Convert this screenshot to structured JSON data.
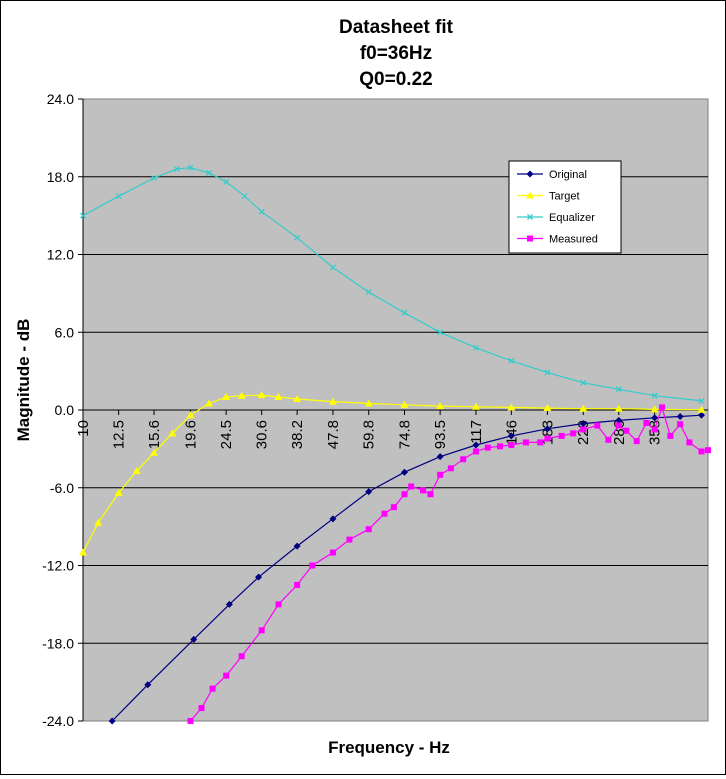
{
  "chart_data": {
    "type": "line",
    "title_lines": [
      "Datasheet fit",
      "f0=36Hz",
      "Q0=0.22"
    ],
    "xlabel": "Frequency - Hz",
    "ylabel": "Magnitude - dB",
    "ylim": [
      -24,
      24
    ],
    "y_ticks": [
      "24.0",
      "18.0",
      "12.0",
      "6.0",
      "0.0",
      "-6.0",
      "-12.0",
      "-18.0",
      "-24.0"
    ],
    "x_scale": "log",
    "x_range": [
      10,
      500
    ],
    "x_ticks": [
      "10",
      "12.5",
      "15.6",
      "19.6",
      "24.5",
      "30.6",
      "38.2",
      "47.8",
      "59.8",
      "74.8",
      "93.5",
      "117",
      "146",
      "183",
      "229",
      "286",
      "358"
    ],
    "grid": "horizontal",
    "legend_position": "upper-right",
    "plot_background": "#c0c0c0",
    "series": [
      {
        "name": "Original",
        "color": "#000080",
        "marker": "diamond",
        "x": [
          12,
          15,
          20,
          25,
          30,
          38.2,
          47.8,
          59.8,
          74.8,
          93.5,
          117,
          146,
          183,
          229,
          286,
          358,
          420,
          480
        ],
        "y": [
          -24,
          -21.2,
          -17.7,
          -15,
          -12.9,
          -10.5,
          -8.4,
          -6.3,
          -4.8,
          -3.6,
          -2.7,
          -2.0,
          -1.45,
          -1.05,
          -0.8,
          -0.6,
          -0.5,
          -0.4
        ]
      },
      {
        "name": "Target",
        "color": "#ffff00",
        "marker": "triangle",
        "x": [
          10,
          11,
          12.5,
          14,
          15.6,
          17.5,
          19.6,
          22,
          24.5,
          27,
          30.6,
          34,
          38.2,
          47.8,
          59.8,
          74.8,
          93.5,
          117,
          146,
          183,
          229,
          286,
          358,
          480
        ],
        "y": [
          -11,
          -8.7,
          -6.4,
          -4.7,
          -3.3,
          -1.8,
          -0.4,
          0.5,
          1.0,
          1.1,
          1.15,
          1.0,
          0.85,
          0.65,
          0.5,
          0.4,
          0.3,
          0.25,
          0.2,
          0.15,
          0.1,
          0.1,
          0.05,
          0.02
        ]
      },
      {
        "name": "Equalizer",
        "color": "#33cccc",
        "marker": "x",
        "x": [
          10,
          12.5,
          15.6,
          18,
          19.6,
          22,
          24.5,
          27.5,
          30.6,
          38.2,
          47.8,
          59.8,
          74.8,
          93.5,
          117,
          146,
          183,
          229,
          286,
          358,
          480
        ],
        "y": [
          15,
          16.5,
          17.9,
          18.6,
          18.7,
          18.3,
          17.6,
          16.5,
          15.3,
          13.3,
          11.0,
          9.1,
          7.5,
          6.0,
          4.8,
          3.8,
          2.9,
          2.1,
          1.6,
          1.1,
          0.7
        ]
      },
      {
        "name": "Measured",
        "color": "#ff00ff",
        "marker": "square",
        "x": [
          19.6,
          21,
          22.5,
          24.5,
          27,
          30.6,
          34,
          38.2,
          42,
          47.8,
          53,
          59.8,
          66,
          70,
          74.8,
          78,
          84,
          88,
          93.5,
          100,
          108,
          117,
          126,
          136,
          146,
          160,
          175,
          183,
          200,
          215,
          229,
          250,
          268,
          286,
          300,
          320,
          340,
          358,
          375,
          395,
          420,
          445,
          480,
          500
        ],
        "y": [
          -24,
          -23,
          -21.5,
          -20.5,
          -19,
          -17,
          -15,
          -13.5,
          -12,
          -11,
          -10,
          -9.2,
          -8,
          -7.5,
          -6.5,
          -5.9,
          -6.2,
          -6.5,
          -5.0,
          -4.5,
          -3.8,
          -3.2,
          -2.9,
          -2.8,
          -2.7,
          -2.5,
          -2.5,
          -2.2,
          -2.0,
          -1.8,
          -1.5,
          -1.2,
          -2.3,
          -1.2,
          -1.6,
          -2.4,
          -1.0,
          -1.5,
          0.2,
          -2.0,
          -1.1,
          -2.5,
          -3.2,
          -3.1
        ]
      }
    ]
  }
}
